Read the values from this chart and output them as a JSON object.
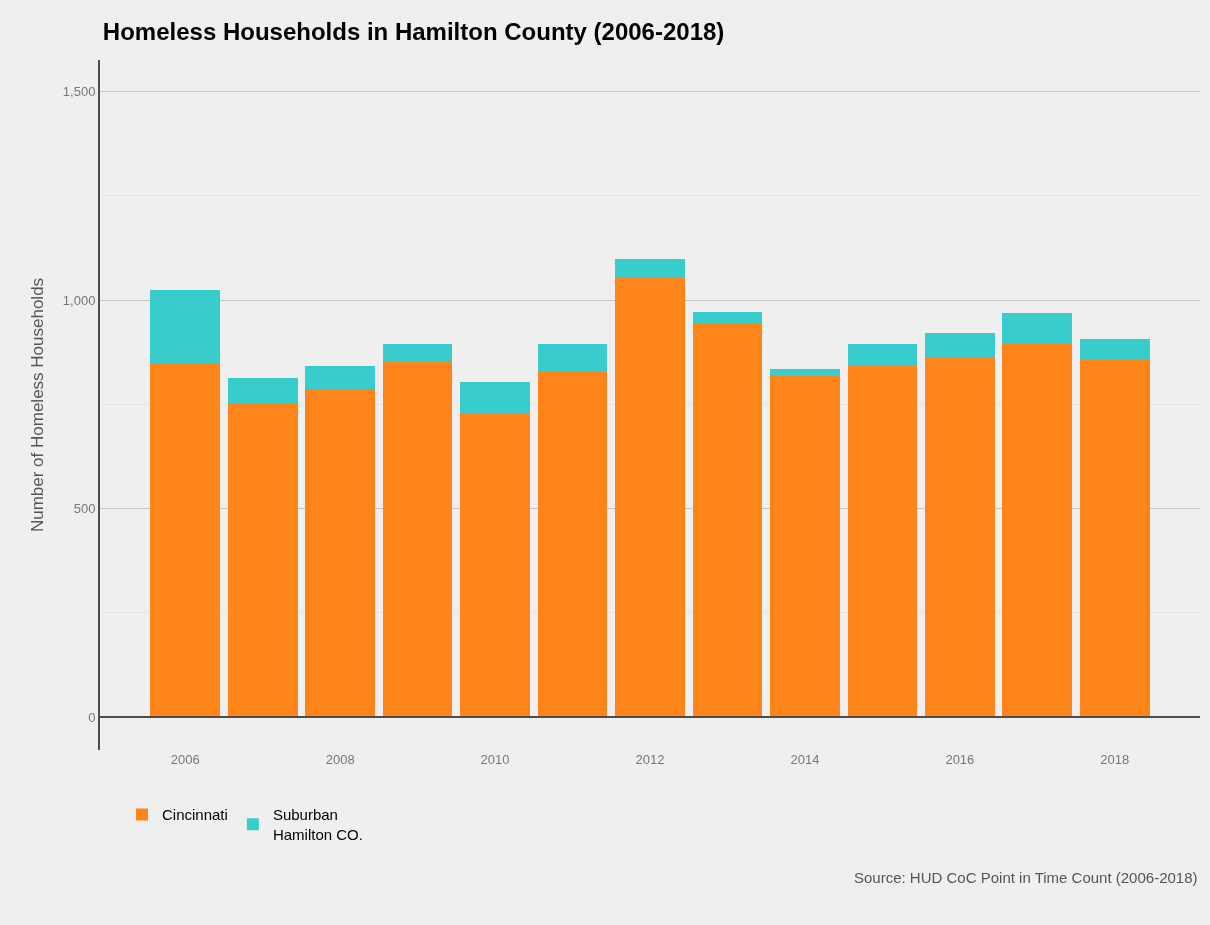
{
  "chart_data": {
    "type": "bar",
    "stacked": true,
    "title": "Homeless Households in Hamilton County (2006-2018)",
    "ylabel": "Number of Homeless Households",
    "x": [
      2006,
      2007,
      2008,
      2009,
      2010,
      2011,
      2012,
      2013,
      2014,
      2015,
      2016,
      2017,
      2018
    ],
    "series": [
      {
        "name": "Cincinnati",
        "color": "#ff851b",
        "values": [
          849,
          754,
          788,
          852,
          730,
          829,
          1053,
          946,
          818,
          844,
          863,
          895,
          859
        ]
      },
      {
        "name": "Suburban\nHamilton CO.",
        "color": "#39cccc",
        "values": [
          176,
          59,
          55,
          43,
          73,
          66,
          46,
          26,
          17,
          50,
          59,
          74,
          47
        ]
      }
    ],
    "xlim": [
      2004.9,
      2019.1
    ],
    "xticks": [
      2006,
      2008,
      2010,
      2012,
      2014,
      2016,
      2018
    ],
    "ylim": [
      -79,
      1576
    ],
    "yticks": [
      {
        "value": 0,
        "label": "0"
      },
      {
        "value": 250,
        "label": null
      },
      {
        "value": 500,
        "label": "500"
      },
      {
        "value": 750,
        "label": null
      },
      {
        "value": 1000,
        "label": "1,000"
      },
      {
        "value": 1250,
        "label": null
      },
      {
        "value": 1500,
        "label": "1,500"
      }
    ],
    "ref_lines": [
      {
        "axis": "y",
        "value": 0,
        "color": "#4d4d4d"
      }
    ],
    "grid": "y",
    "legend": "bottom left",
    "annotations": [
      "Source: HUD CoC Point in Time Count (2006-2018)"
    ]
  }
}
